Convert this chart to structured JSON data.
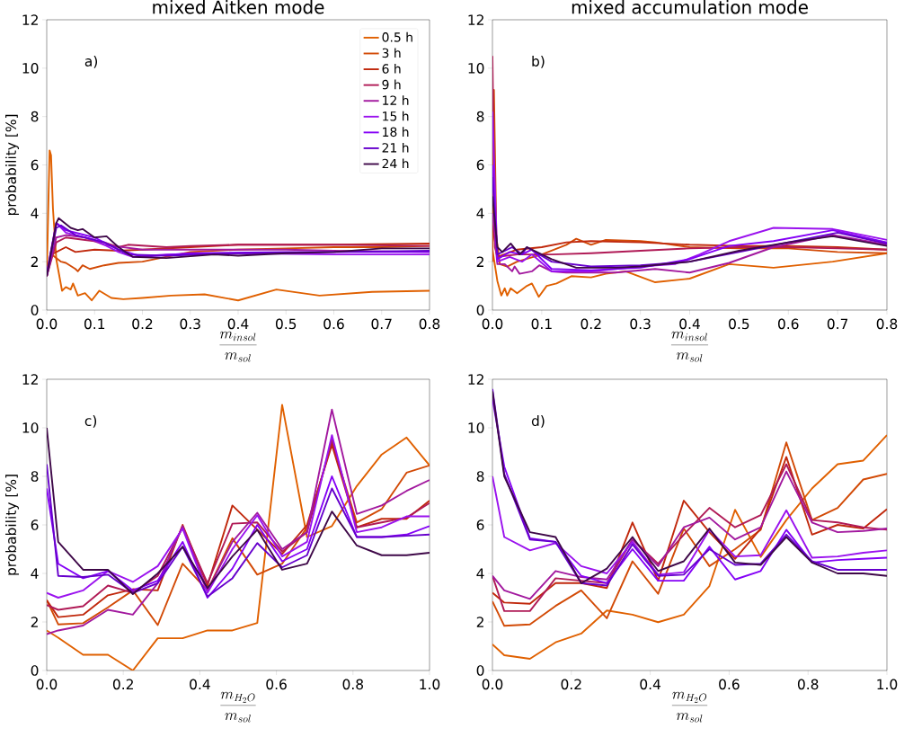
{
  "chart_data": [
    {
      "type": "line",
      "title": "mixed Aitken mode",
      "xlabel": "\\frac{m_{insol}}{m_{sol}}",
      "ylabel": "probability [%]",
      "annotations": [
        "a)"
      ],
      "legend": "top right",
      "xlim": [
        0,
        0.8
      ],
      "ylim": [
        0,
        12
      ],
      "xticks": [
        {
          "value": 0,
          "label": "0.0"
        },
        {
          "value": 0.1,
          "label": "0.1"
        },
        {
          "value": 0.2,
          "label": "0.2"
        },
        {
          "value": 0.3,
          "label": "0.3"
        },
        {
          "value": 0.4,
          "label": "0.4"
        },
        {
          "value": 0.5,
          "label": "0.5"
        },
        {
          "value": 0.6,
          "label": "0.6"
        },
        {
          "value": 0.7,
          "label": "0.7"
        },
        {
          "value": 0.8,
          "label": "0.8"
        }
      ],
      "yticks": [
        0,
        2,
        4,
        6,
        8,
        10,
        12
      ],
      "series": [
        {
          "name": "0.5 h",
          "color": "#e06000",
          "x": [
            0,
            0.003,
            0.006,
            0.009,
            0.013,
            0.02,
            0.032,
            0.04,
            0.05,
            0.055,
            0.065,
            0.08,
            0.094,
            0.11,
            0.135,
            0.16,
            0.2,
            0.26,
            0.33,
            0.4,
            0.48,
            0.57,
            0.68,
            0.8
          ],
          "values": [
            1.4,
            4.0,
            6.6,
            6.4,
            4.2,
            2.1,
            0.8,
            0.95,
            0.85,
            1.1,
            0.6,
            0.7,
            0.4,
            0.8,
            0.5,
            0.45,
            0.5,
            0.6,
            0.65,
            0.4,
            0.85,
            0.6,
            0.75,
            0.8
          ]
        },
        {
          "name": "3 h",
          "color": "#d24a06",
          "x": [
            0,
            0.01,
            0.03,
            0.04,
            0.06,
            0.065,
            0.075,
            0.09,
            0.12,
            0.15,
            0.2,
            0.25,
            0.3,
            0.4,
            0.5,
            0.6,
            0.7,
            0.8
          ],
          "values": [
            1.4,
            2.3,
            2.0,
            1.95,
            1.7,
            1.6,
            1.85,
            1.7,
            1.85,
            1.95,
            2.0,
            2.2,
            2.4,
            2.5,
            2.55,
            2.6,
            2.6,
            2.65
          ]
        },
        {
          "name": "6 h",
          "color": "#c0280c",
          "x": [
            0,
            0.01,
            0.04,
            0.06,
            0.1,
            0.15,
            0.2,
            0.3,
            0.4,
            0.6,
            0.8
          ],
          "values": [
            1.4,
            2.3,
            2.6,
            2.4,
            2.5,
            2.45,
            2.5,
            2.6,
            2.7,
            2.7,
            2.75
          ]
        },
        {
          "name": "9 h",
          "color": "#b01a56",
          "x": [
            0,
            0.02,
            0.04,
            0.08,
            0.12,
            0.15,
            0.17,
            0.25,
            0.3,
            0.4,
            0.6,
            0.8
          ],
          "values": [
            1.4,
            2.8,
            3.0,
            2.9,
            2.8,
            2.6,
            2.7,
            2.6,
            2.65,
            2.7,
            2.7,
            2.65
          ]
        },
        {
          "name": "12 h",
          "color": "#a2189e",
          "x": [
            0,
            0.02,
            0.04,
            0.08,
            0.12,
            0.2,
            0.3,
            0.5,
            0.6,
            0.8
          ],
          "values": [
            1.4,
            3.0,
            3.1,
            3.0,
            2.7,
            2.5,
            2.5,
            2.5,
            2.45,
            2.4
          ]
        },
        {
          "name": "15 h",
          "color": "#9a12ee",
          "x": [
            0,
            0.02,
            0.04,
            0.1,
            0.15,
            0.18,
            0.25,
            0.4,
            0.6,
            0.8
          ],
          "values": [
            1.5,
            3.6,
            3.2,
            2.9,
            2.4,
            2.2,
            2.3,
            2.35,
            2.3,
            2.3
          ]
        },
        {
          "name": "18 h",
          "color": "#8400f6",
          "x": [
            0,
            0.02,
            0.04,
            0.1,
            0.15,
            0.2,
            0.3,
            0.5,
            0.8
          ],
          "values": [
            1.5,
            3.6,
            3.3,
            3.0,
            2.5,
            2.2,
            2.35,
            2.4,
            2.4
          ]
        },
        {
          "name": "21 h",
          "color": "#6600cc",
          "x": [
            0,
            0.02,
            0.03,
            0.06,
            0.12,
            0.17,
            0.25,
            0.4,
            0.6,
            0.8
          ],
          "values": [
            1.4,
            3.4,
            3.5,
            3.1,
            2.8,
            2.3,
            2.25,
            2.35,
            2.4,
            2.45
          ]
        },
        {
          "name": "24 h",
          "color": "#3e0848",
          "x": [
            0,
            0.02,
            0.025,
            0.05,
            0.065,
            0.075,
            0.1,
            0.125,
            0.15,
            0.18,
            0.25,
            0.35,
            0.4,
            0.5,
            0.6,
            0.7,
            0.8
          ],
          "values": [
            1.4,
            3.6,
            3.8,
            3.4,
            3.3,
            3.35,
            3.0,
            3.05,
            2.6,
            2.2,
            2.15,
            2.3,
            2.25,
            2.35,
            2.4,
            2.55,
            2.55
          ]
        }
      ]
    },
    {
      "type": "line",
      "title": "mixed accumulation mode",
      "xlabel": "\\frac{m_{insol}}{m_{sol}}",
      "annotations": [
        "b)"
      ],
      "xlim": [
        0,
        0.8
      ],
      "ylim": [
        0,
        12
      ],
      "xticks": [
        {
          "value": 0,
          "label": "0.0"
        },
        {
          "value": 0.1,
          "label": "0.1"
        },
        {
          "value": 0.2,
          "label": "0.2"
        },
        {
          "value": 0.3,
          "label": "0.3"
        },
        {
          "value": 0.4,
          "label": "0.4"
        },
        {
          "value": 0.5,
          "label": "0.5"
        },
        {
          "value": 0.6,
          "label": "0.6"
        },
        {
          "value": 0.7,
          "label": "0.7"
        },
        {
          "value": 0.8,
          "label": "0.8"
        }
      ],
      "yticks": [
        0,
        2,
        4,
        6,
        8,
        10,
        12
      ],
      "series": [
        {
          "color": "#e06000",
          "x": [
            0,
            0.01,
            0.018,
            0.025,
            0.03,
            0.037,
            0.05,
            0.07,
            0.08,
            0.094,
            0.11,
            0.13,
            0.16,
            0.2,
            0.23,
            0.27,
            0.33,
            0.4,
            0.48,
            0.57,
            0.69,
            0.8
          ],
          "values": [
            2.5,
            1.2,
            0.6,
            0.9,
            0.6,
            0.9,
            0.7,
            1.0,
            1.1,
            0.55,
            1.0,
            1.1,
            1.4,
            1.35,
            1.5,
            1.6,
            1.15,
            1.3,
            1.9,
            1.75,
            2.0,
            2.35
          ]
        },
        {
          "color": "#d24a06",
          "x": [
            0,
            0.003,
            0.008,
            0.015,
            0.03,
            0.05,
            0.1,
            0.15,
            0.17,
            0.2,
            0.23,
            0.3,
            0.33,
            0.4,
            0.5,
            0.6,
            0.7,
            0.8
          ],
          "values": [
            2.0,
            9.1,
            3.0,
            1.9,
            1.8,
            2.0,
            2.3,
            2.7,
            2.95,
            2.7,
            2.9,
            2.85,
            2.8,
            2.6,
            2.55,
            2.55,
            2.4,
            2.35
          ]
        },
        {
          "color": "#c0280c",
          "x": [
            0,
            0.01,
            0.05,
            0.1,
            0.15,
            0.2,
            0.3,
            0.4,
            0.5,
            0.6,
            0.7,
            0.8
          ],
          "values": [
            3.5,
            2.2,
            2.5,
            2.6,
            2.8,
            2.85,
            2.8,
            2.7,
            2.65,
            2.65,
            2.6,
            2.5
          ]
        },
        {
          "color": "#b01a56",
          "x": [
            0,
            0.005,
            0.01,
            0.05,
            0.12,
            0.2,
            0.3,
            0.4,
            0.5,
            0.6,
            0.7,
            0.8
          ],
          "values": [
            10.5,
            2.6,
            2.2,
            2.3,
            2.3,
            2.35,
            2.45,
            2.55,
            2.6,
            2.6,
            2.55,
            2.5
          ]
        },
        {
          "color": "#a2189e",
          "x": [
            0,
            0.01,
            0.025,
            0.04,
            0.045,
            0.055,
            0.08,
            0.095,
            0.12,
            0.15,
            0.25,
            0.33,
            0.4,
            0.48,
            0.57,
            0.69,
            0.8
          ],
          "values": [
            4.0,
            1.9,
            1.9,
            1.6,
            1.8,
            1.5,
            1.6,
            1.85,
            1.6,
            1.55,
            1.55,
            1.7,
            1.55,
            1.95,
            2.6,
            3.1,
            2.7
          ]
        },
        {
          "color": "#9a12ee",
          "x": [
            0,
            0.01,
            0.035,
            0.06,
            0.08,
            0.12,
            0.2,
            0.3,
            0.37,
            0.42,
            0.48,
            0.57,
            0.69,
            0.8
          ],
          "values": [
            8.2,
            2.0,
            2.2,
            2.0,
            2.3,
            1.6,
            1.6,
            1.8,
            1.9,
            2.3,
            2.85,
            3.4,
            3.35,
            2.9
          ]
        },
        {
          "color": "#8400f6",
          "x": [
            0,
            0.01,
            0.035,
            0.06,
            0.08,
            0.12,
            0.2,
            0.3,
            0.4,
            0.48,
            0.57,
            0.69,
            0.8
          ],
          "values": [
            6.0,
            2.1,
            2.4,
            2.3,
            2.5,
            1.7,
            1.65,
            1.75,
            2.1,
            2.65,
            2.85,
            3.3,
            2.8
          ]
        },
        {
          "color": "#6600cc",
          "x": [
            0,
            0.01,
            0.04,
            0.06,
            0.07,
            0.12,
            0.2,
            0.3,
            0.4,
            0.5,
            0.6,
            0.7,
            0.8
          ],
          "values": [
            5.5,
            2.3,
            2.6,
            2.3,
            2.6,
            2.0,
            1.8,
            1.85,
            2.0,
            2.4,
            2.8,
            3.2,
            2.75
          ]
        },
        {
          "color": "#3e0848",
          "x": [
            0,
            0.01,
            0.02,
            0.037,
            0.055,
            0.07,
            0.12,
            0.17,
            0.25,
            0.3,
            0.4,
            0.5,
            0.6,
            0.69,
            0.8
          ],
          "values": [
            4.7,
            2.6,
            2.4,
            2.75,
            2.3,
            2.6,
            2.1,
            1.75,
            1.75,
            1.8,
            2.0,
            2.45,
            2.8,
            3.05,
            2.65
          ]
        }
      ]
    },
    {
      "type": "line",
      "xlabel": "\\frac{m_{H_2O}}{m_{sol}}",
      "ylabel": "probability [%]",
      "annotations": [
        "c)"
      ],
      "xlim": [
        0,
        1.0
      ],
      "ylim": [
        0,
        12
      ],
      "xticks": [
        {
          "value": 0,
          "label": "0.0"
        },
        {
          "value": 0.2,
          "label": "0.2"
        },
        {
          "value": 0.4,
          "label": "0.4"
        },
        {
          "value": 0.6,
          "label": "0.6"
        },
        {
          "value": 0.8,
          "label": "0.8"
        },
        {
          "value": 1.0,
          "label": "1.0"
        }
      ],
      "yticks": [
        0,
        2,
        4,
        6,
        8,
        10,
        12
      ],
      "x": [
        0,
        0.03,
        0.095,
        0.16,
        0.225,
        0.29,
        0.355,
        0.42,
        0.485,
        0.55,
        0.615,
        0.68,
        0.745,
        0.81,
        0.875,
        0.94,
        1.0
      ],
      "series": [
        {
          "color": "#e06000",
          "values": [
            1.65,
            1.35,
            0.65,
            0.65,
            0.0,
            1.33,
            1.33,
            1.65,
            1.65,
            1.96,
            10.95,
            5.5,
            5.95,
            7.6,
            8.9,
            9.6,
            8.45
          ]
        },
        {
          "color": "#d24a06",
          "values": [
            2.9,
            1.9,
            1.95,
            2.6,
            3.3,
            1.87,
            4.4,
            3.3,
            5.45,
            3.95,
            4.4,
            5.9,
            9.4,
            6.1,
            6.65,
            8.15,
            8.45
          ]
        },
        {
          "color": "#c0280c",
          "values": [
            2.9,
            2.2,
            2.3,
            3.1,
            3.35,
            3.3,
            6.0,
            3.5,
            6.8,
            5.8,
            4.8,
            6.0,
            9.3,
            5.9,
            6.25,
            6.25,
            7.0
          ]
        },
        {
          "color": "#b01a56",
          "values": [
            2.7,
            2.5,
            2.65,
            3.5,
            3.2,
            3.9,
            5.9,
            3.6,
            6.05,
            6.1,
            4.9,
            5.7,
            9.5,
            5.9,
            6.1,
            6.3,
            6.9
          ]
        },
        {
          "color": "#a2189e",
          "values": [
            1.5,
            1.65,
            1.85,
            2.5,
            2.3,
            3.6,
            5.95,
            3.3,
            5.3,
            6.5,
            5.0,
            5.7,
            10.75,
            6.45,
            6.8,
            7.4,
            7.85
          ]
        },
        {
          "color": "#9a12ee",
          "values": [
            3.2,
            3.0,
            3.3,
            4.1,
            3.65,
            4.3,
            5.85,
            3.2,
            5.0,
            6.4,
            4.7,
            5.3,
            9.7,
            5.7,
            5.9,
            6.35,
            6.35
          ]
        },
        {
          "color": "#8400f6",
          "values": [
            7.5,
            4.4,
            3.8,
            4.1,
            3.3,
            3.7,
            5.3,
            3.0,
            4.2,
            6.0,
            4.5,
            5.0,
            8.0,
            5.5,
            5.5,
            5.6,
            5.95
          ]
        },
        {
          "color": "#6600cc",
          "values": [
            8.5,
            3.9,
            3.85,
            3.95,
            3.2,
            3.6,
            5.1,
            3.05,
            3.8,
            5.25,
            4.25,
            4.75,
            7.5,
            5.5,
            5.5,
            5.55,
            5.6
          ]
        },
        {
          "color": "#3e0848",
          "values": [
            10.0,
            5.3,
            4.15,
            4.15,
            3.15,
            4.0,
            5.1,
            3.4,
            4.7,
            5.8,
            4.15,
            4.4,
            6.55,
            5.15,
            4.75,
            4.75,
            4.85
          ]
        }
      ]
    },
    {
      "type": "line",
      "xlabel": "\\frac{m_{H_2O}}{m_{sol}}",
      "annotations": [
        "d)"
      ],
      "xlim": [
        0,
        1.0
      ],
      "ylim": [
        0,
        12
      ],
      "xticks": [
        {
          "value": 0,
          "label": "0.0"
        },
        {
          "value": 0.2,
          "label": "0.2"
        },
        {
          "value": 0.4,
          "label": "0.4"
        },
        {
          "value": 0.6,
          "label": "0.6"
        },
        {
          "value": 0.8,
          "label": "0.8"
        },
        {
          "value": 1.0,
          "label": "1.0"
        }
      ],
      "yticks": [
        0,
        2,
        4,
        6,
        8,
        10,
        12
      ],
      "x": [
        0,
        0.03,
        0.095,
        0.16,
        0.225,
        0.29,
        0.355,
        0.42,
        0.485,
        0.55,
        0.615,
        0.68,
        0.745,
        0.81,
        0.875,
        0.94,
        1.0
      ],
      "series": [
        {
          "color": "#e06000",
          "values": [
            1.08,
            0.63,
            0.48,
            1.16,
            1.52,
            2.47,
            2.3,
            1.99,
            2.3,
            3.48,
            6.62,
            4.68,
            6.2,
            7.5,
            8.5,
            8.65,
            9.7
          ]
        },
        {
          "color": "#d24a06",
          "values": [
            2.85,
            1.84,
            1.9,
            2.66,
            3.3,
            2.15,
            4.5,
            3.16,
            5.85,
            4.3,
            5.0,
            5.8,
            9.4,
            6.2,
            6.7,
            7.87,
            8.1
          ]
        },
        {
          "color": "#c0280c",
          "values": [
            3.2,
            2.8,
            2.75,
            3.6,
            3.6,
            3.4,
            6.1,
            3.7,
            7.0,
            5.7,
            4.6,
            5.85,
            8.8,
            5.6,
            6.0,
            5.85,
            6.65
          ]
        },
        {
          "color": "#b01a56",
          "values": [
            3.9,
            2.45,
            2.45,
            3.8,
            3.7,
            3.6,
            5.4,
            4.4,
            5.6,
            6.7,
            5.9,
            6.4,
            8.5,
            6.2,
            6.1,
            5.9,
            5.8
          ]
        },
        {
          "color": "#a2189e",
          "values": [
            3.9,
            3.3,
            2.95,
            4.1,
            3.85,
            3.75,
            5.4,
            4.3,
            5.9,
            6.3,
            5.4,
            5.9,
            8.2,
            6.1,
            5.7,
            5.75,
            5.85
          ]
        },
        {
          "color": "#9a12ee",
          "values": [
            8.0,
            5.5,
            4.95,
            5.25,
            4.3,
            4.0,
            5.3,
            3.95,
            4.05,
            5.8,
            4.7,
            4.75,
            6.6,
            4.65,
            4.7,
            4.85,
            4.95
          ]
        },
        {
          "color": "#8400f6",
          "values": [
            11.2,
            8.4,
            5.45,
            5.3,
            3.9,
            3.6,
            5.0,
            3.7,
            3.7,
            5.1,
            3.75,
            4.1,
            5.8,
            4.45,
            4.55,
            4.6,
            4.65
          ]
        },
        {
          "color": "#6600cc",
          "values": [
            11.6,
            8.1,
            5.4,
            5.3,
            3.6,
            3.5,
            5.2,
            3.9,
            3.95,
            5.0,
            4.35,
            4.4,
            5.6,
            4.5,
            4.15,
            4.15,
            4.15
          ]
        },
        {
          "color": "#3e0848",
          "values": [
            11.5,
            8.0,
            5.7,
            5.5,
            3.6,
            4.2,
            5.5,
            4.1,
            4.5,
            5.85,
            4.45,
            4.35,
            5.5,
            4.45,
            4.0,
            4.0,
            3.9
          ]
        }
      ]
    }
  ]
}
